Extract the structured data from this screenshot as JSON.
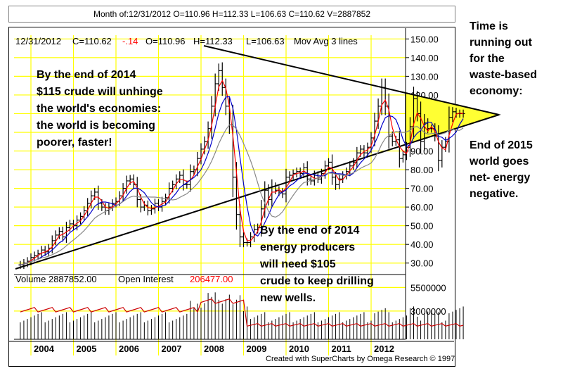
{
  "header": {
    "title": "Month of:12/31/2012 O=110.96 H=112.33 L=106.63 C=110.62 V=2887852"
  },
  "price_info": {
    "date": "12/31/2012",
    "close": "C=110.62",
    "change": "-.14",
    "open": "O=110.96",
    "high": "H=112.33",
    "low": "L=106.63",
    "study": "Mov Avg 3 lines"
  },
  "volume_info": {
    "volume": "Volume  2887852.00",
    "oi_label": "Open Interest",
    "oi_value": "206477.00"
  },
  "annotations": {
    "top_left": [
      "By the end of 2014",
      "$115 crude will unhinge",
      "the world's economies:",
      "the world is becoming",
      "poorer, faster!"
    ],
    "bottom_middle": [
      "By the end of  2014",
      "energy producers",
      "will need $105",
      "crude to keep drilling",
      "new wells."
    ],
    "side_top": [
      "Time is",
      "running out",
      "for the",
      "waste-based",
      "economy:"
    ],
    "side_bottom": [
      "End of 2015",
      "world goes",
      "net- energy",
      "negative."
    ]
  },
  "footer": {
    "credit": "Created with SuperCharts by Omega Research © 1997"
  },
  "colors": {
    "grid": "#ffff00",
    "triangle_fill": "#ffff33",
    "ma_fast": "#ff0000",
    "ma_mid": "#0000cc",
    "ma_slow": "#888888",
    "oi_line": "#cc0000"
  },
  "chart_data": {
    "type": "bar",
    "subtype": "ohlc-monthly",
    "price_axis": {
      "ticks": [
        30,
        40,
        50,
        60,
        70,
        80,
        90,
        100,
        110,
        120,
        130,
        140,
        150
      ],
      "labels": [
        "30.00",
        "40.00",
        "50.00",
        "60.00",
        "70.00",
        "80.00",
        "90.00",
        "100.00",
        "110.00",
        "120.00",
        "130.00",
        "140.00",
        "150.00"
      ],
      "range": [
        25,
        152
      ]
    },
    "volume_axis": {
      "ticks": [
        3000000,
        5500000
      ],
      "labels": [
        "3000000",
        "5500000"
      ]
    },
    "x_labels": [
      "2004",
      "2005",
      "2006",
      "2007",
      "2008",
      "2009",
      "2010",
      "2011",
      "2012"
    ],
    "start_date": "2003-10",
    "closes": [
      29,
      30,
      31,
      33,
      34,
      35,
      37,
      36,
      38,
      42,
      45,
      47,
      44,
      49,
      51,
      50,
      53,
      55,
      58,
      62,
      66,
      68,
      62,
      60,
      58,
      60,
      62,
      63,
      66,
      70,
      74,
      75,
      72,
      64,
      60,
      61,
      58,
      59,
      62,
      60,
      63,
      65,
      70,
      72,
      75,
      77,
      72,
      72,
      79,
      80,
      86,
      91,
      95,
      102,
      114,
      126,
      133,
      124,
      114,
      104,
      76,
      56,
      44,
      41,
      41,
      44,
      48,
      49,
      59,
      69,
      64,
      71,
      69,
      68,
      67,
      76,
      77,
      78,
      79,
      78,
      81,
      75,
      74,
      77,
      75,
      78,
      82,
      84,
      76,
      72,
      75,
      77,
      79,
      82,
      84,
      89,
      91,
      89,
      92,
      97,
      106,
      114,
      124,
      114,
      98,
      95,
      96,
      86,
      88,
      92,
      103,
      118,
      110,
      95,
      105,
      102,
      102,
      98,
      85,
      92,
      95,
      108,
      111,
      110,
      110,
      110
    ]
  }
}
